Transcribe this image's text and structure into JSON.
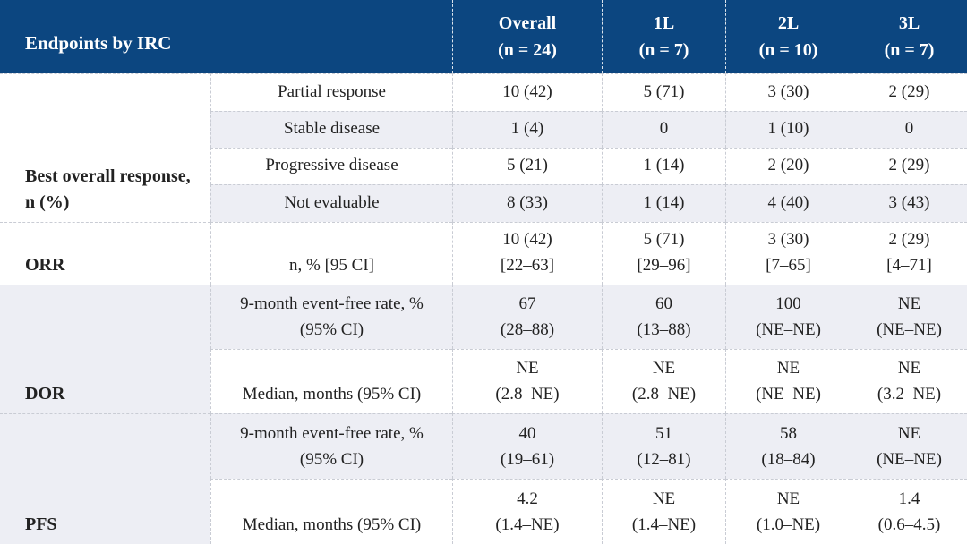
{
  "table": {
    "title": "Endpoints by IRC",
    "columns": [
      {
        "label": "Overall",
        "n": "(n = 24)"
      },
      {
        "label": "1L",
        "n": "(n = 7)"
      },
      {
        "label": "2L",
        "n": "(n = 10)"
      },
      {
        "label": "3L",
        "n": "(n = 7)"
      }
    ],
    "groups": [
      {
        "id": "best-overall-response",
        "label": "Best overall response, n (%)",
        "rows": [
          {
            "label": [
              "Partial response"
            ],
            "values": [
              [
                "10 (42)"
              ],
              [
                "5 (71)"
              ],
              [
                "3 (30)"
              ],
              [
                "2 (29)"
              ]
            ]
          },
          {
            "label": [
              "Stable disease"
            ],
            "values": [
              [
                "1 (4)"
              ],
              [
                "0"
              ],
              [
                "1 (10)"
              ],
              [
                "0"
              ]
            ]
          },
          {
            "label": [
              "Progressive disease"
            ],
            "values": [
              [
                "5 (21)"
              ],
              [
                "1 (14)"
              ],
              [
                "2 (20)"
              ],
              [
                "2 (29)"
              ]
            ]
          },
          {
            "label": [
              "Not evaluable"
            ],
            "values": [
              [
                "8 (33)"
              ],
              [
                "1 (14)"
              ],
              [
                "4 (40)"
              ],
              [
                "3 (43)"
              ]
            ]
          }
        ]
      },
      {
        "id": "orr",
        "label": "ORR",
        "rows": [
          {
            "label": [
              "n, % [95 CI]"
            ],
            "values": [
              [
                "10 (42)",
                "[22–63]"
              ],
              [
                "5 (71)",
                "[29–96]"
              ],
              [
                "3 (30)",
                "[7–65]"
              ],
              [
                "2 (29)",
                "[4–71]"
              ]
            ]
          }
        ]
      },
      {
        "id": "dor",
        "label": "DOR",
        "rows": [
          {
            "label": [
              "9-month event-free rate, %",
              "(95% CI)"
            ],
            "values": [
              [
                "67",
                "(28–88)"
              ],
              [
                "60",
                "(13–88)"
              ],
              [
                "100",
                "(NE–NE)"
              ],
              [
                "NE",
                "(NE–NE)"
              ]
            ]
          },
          {
            "label": [
              "Median, months (95% CI)"
            ],
            "values": [
              [
                "NE",
                "(2.8–NE)"
              ],
              [
                "NE",
                "(2.8–NE)"
              ],
              [
                "NE",
                "(NE–NE)"
              ],
              [
                "NE",
                "(3.2–NE)"
              ]
            ]
          }
        ]
      },
      {
        "id": "pfs",
        "label": "PFS",
        "rows": [
          {
            "label": [
              "9-month event-free rate, %",
              "(95% CI)"
            ],
            "values": [
              [
                "40",
                "(19–61)"
              ],
              [
                "51",
                "(12–81)"
              ],
              [
                "58",
                "(18–84)"
              ],
              [
                "NE",
                "(NE–NE)"
              ]
            ]
          },
          {
            "label": [
              "Median, months (95% CI)"
            ],
            "values": [
              [
                "4.2",
                "(1.4–NE)"
              ],
              [
                "NE",
                "(1.4–NE)"
              ],
              [
                "NE",
                "(1.0–NE)"
              ],
              [
                "1.4",
                "(0.6–4.5)"
              ]
            ]
          }
        ]
      }
    ]
  },
  "colors": {
    "header_bg": "#0c4680",
    "header_text": "#ffffff",
    "row_alt": "#edeef4",
    "row_main": "#ffffff",
    "border": "#c9ccd4",
    "text": "#222222"
  }
}
